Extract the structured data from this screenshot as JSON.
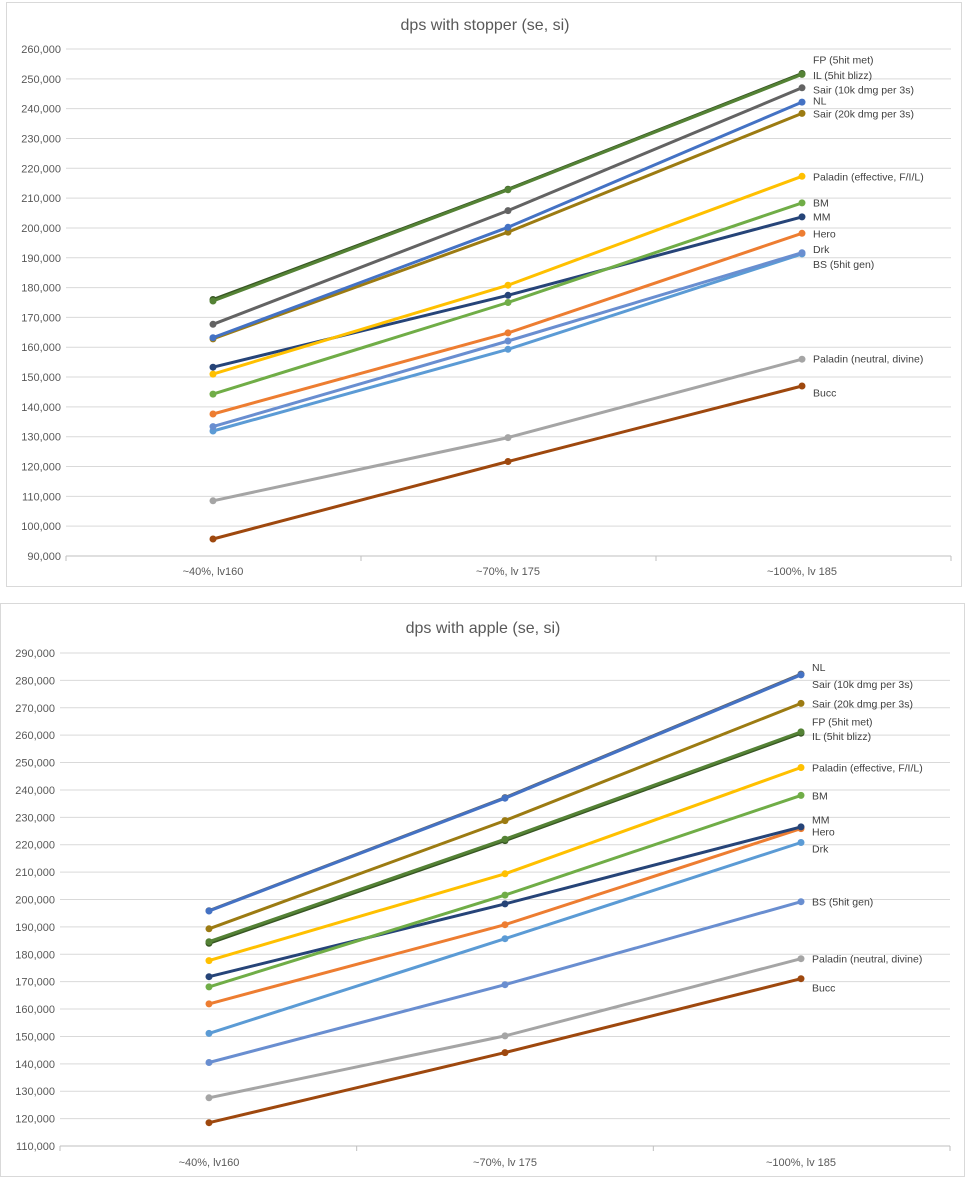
{
  "chart_data": [
    {
      "type": "line",
      "title": "dps with stopper (se, si)",
      "xlabel": "",
      "ylabel": "",
      "categories": [
        "~40%, lv160",
        "~70%, lv 175",
        "~100%, lv 185"
      ],
      "ylim": [
        90000,
        260000
      ],
      "ytick_step": 10000,
      "ytick_labels": [
        "90,000",
        "100,000",
        "110,000",
        "120,000",
        "130,000",
        "140,000",
        "150,000",
        "160,000",
        "170,000",
        "180,000",
        "190,000",
        "200,000",
        "210,000",
        "220,000",
        "230,000",
        "240,000",
        "250,000",
        "260,000"
      ],
      "grid": true,
      "legend": "end-of-line labels",
      "series": [
        {
          "name": "FP (5hit met)",
          "color": "#548235",
          "values": [
            175500,
            212800,
            251500
          ]
        },
        {
          "name": "IL (5hit blizz)",
          "color": "#375623",
          "values": [
            176000,
            213000,
            251800
          ]
        },
        {
          "name": "Sair (10k dmg per 3s)",
          "color": "#636363",
          "values": [
            167700,
            205800,
            247000
          ]
        },
        {
          "name": "NL",
          "color": "#4472C4",
          "values": [
            163200,
            200200,
            242200
          ]
        },
        {
          "name": "Sair (20k dmg per 3s)",
          "color": "#9C7B12",
          "values": [
            162800,
            198600,
            238400
          ]
        },
        {
          "name": "Paladin (effective, F/I/L)",
          "color": "#FFC000",
          "values": [
            151000,
            180800,
            217300
          ]
        },
        {
          "name": "BM",
          "color": "#70AD47",
          "values": [
            144300,
            175000,
            208400
          ]
        },
        {
          "name": "MM",
          "color": "#264478",
          "values": [
            153300,
            177400,
            203700
          ]
        },
        {
          "name": "Hero",
          "color": "#ED7D31",
          "values": [
            137600,
            164800,
            198200
          ]
        },
        {
          "name": "Drk",
          "color": "#698ED0",
          "values": [
            133400,
            162100,
            191700
          ]
        },
        {
          "name": "BS (5hit gen)",
          "color": "#5B9BD5",
          "values": [
            131900,
            159300,
            191300
          ]
        },
        {
          "name": "Paladin (neutral, divine)",
          "color": "#A5A5A5",
          "values": [
            108500,
            129700,
            156000
          ]
        },
        {
          "name": "Bucc",
          "color": "#9E480E",
          "values": [
            95700,
            121700,
            147000
          ]
        }
      ],
      "end_labels": [
        {
          "text": "FP (5hit met)",
          "value": 256500
        },
        {
          "text": "IL (5hit blizz)",
          "value": 251200
        },
        {
          "text": "Sair (10k dmg per 3s)",
          "value": 246500
        },
        {
          "text": "NL",
          "value": 242800
        },
        {
          "text": "Sair (20k dmg per 3s)",
          "value": 238300
        },
        {
          "text": "Paladin (effective, F/I/L)",
          "value": 217300
        },
        {
          "text": "BM",
          "value": 208600
        },
        {
          "text": "MM",
          "value": 203900
        },
        {
          "text": "Hero",
          "value": 198200
        },
        {
          "text": "Drk",
          "value": 193000
        },
        {
          "text": "BS (5hit gen)",
          "value": 187900
        },
        {
          "text": "Paladin (neutral, divine)",
          "value": 156200
        },
        {
          "text": "Bucc",
          "value": 144800
        }
      ]
    },
    {
      "type": "line",
      "title": "dps with apple (se, si)",
      "xlabel": "",
      "ylabel": "",
      "categories": [
        "~40%, lv160",
        "~70%, lv 175",
        "~100%, lv 185"
      ],
      "ylim": [
        110000,
        290000
      ],
      "ytick_step": 10000,
      "ytick_labels": [
        "110,000",
        "120,000",
        "130,000",
        "140,000",
        "150,000",
        "160,000",
        "170,000",
        "180,000",
        "190,000",
        "200,000",
        "210,000",
        "220,000",
        "230,000",
        "240,000",
        "250,000",
        "260,000",
        "270,000",
        "280,000",
        "290,000"
      ],
      "grid": true,
      "legend": "end-of-line labels",
      "series": [
        {
          "name": "NL",
          "color": "#4472C4",
          "values": [
            195800,
            237000,
            282000
          ]
        },
        {
          "name": "Sair (10k dmg per 3s)",
          "color": "#636363",
          "values": [
            195900,
            237200,
            282300
          ]
        },
        {
          "name": "Sair (20k dmg per 3s)",
          "color": "#9C7B12",
          "values": [
            189300,
            228800,
            271600
          ]
        },
        {
          "name": "FP (5hit met)",
          "color": "#548235",
          "values": [
            184600,
            222000,
            261200
          ]
        },
        {
          "name": "IL (5hit blizz)",
          "color": "#375623",
          "values": [
            184000,
            221500,
            260700
          ]
        },
        {
          "name": "Paladin (effective, F/I/L)",
          "color": "#FFC000",
          "values": [
            177700,
            209400,
            248200
          ]
        },
        {
          "name": "BM",
          "color": "#70AD47",
          "values": [
            168100,
            201600,
            238000
          ]
        },
        {
          "name": "MM",
          "color": "#264478",
          "values": [
            171800,
            198400,
            226500
          ]
        },
        {
          "name": "Hero",
          "color": "#ED7D31",
          "values": [
            161900,
            190800,
            225900
          ]
        },
        {
          "name": "Drk",
          "color": "#5B9BD5",
          "values": [
            151100,
            185700,
            220800
          ]
        },
        {
          "name": "BS (5hit gen)",
          "color": "#698ED0",
          "values": [
            140500,
            168900,
            199200
          ]
        },
        {
          "name": "Paladin (neutral, divine)",
          "color": "#A5A5A5",
          "values": [
            127600,
            150200,
            178400
          ]
        },
        {
          "name": "Bucc",
          "color": "#9E480E",
          "values": [
            118500,
            144100,
            171100
          ]
        }
      ],
      "end_labels": [
        {
          "text": "NL",
          "value": 284800
        },
        {
          "text": "Sair (10k dmg per 3s)",
          "value": 278700
        },
        {
          "text": "Sair (20k dmg per 3s)",
          "value": 271600
        },
        {
          "text": "FP (5hit met)",
          "value": 264900
        },
        {
          "text": "IL (5hit blizz)",
          "value": 259700
        },
        {
          "text": "Paladin (effective, F/I/L)",
          "value": 248200
        },
        {
          "text": "BM",
          "value": 238000
        },
        {
          "text": "MM",
          "value": 229200
        },
        {
          "text": "Hero",
          "value": 224800
        },
        {
          "text": "Drk",
          "value": 218600
        },
        {
          "text": "BS (5hit gen)",
          "value": 199200
        },
        {
          "text": "Paladin (neutral, divine)",
          "value": 178400
        },
        {
          "text": "Bucc",
          "value": 167800
        }
      ]
    }
  ]
}
